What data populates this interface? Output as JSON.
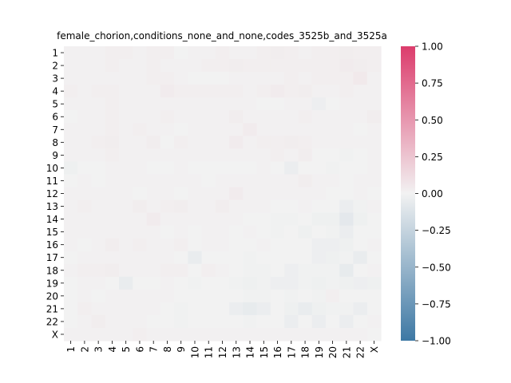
{
  "chart_data": {
    "type": "heatmap",
    "title": "female_chorion,conditions_none_and_none,codes_3525b_and_3525a",
    "xlabel": "",
    "ylabel": "",
    "row_labels": [
      "1",
      "2",
      "3",
      "4",
      "5",
      "6",
      "7",
      "8",
      "9",
      "10",
      "11",
      "12",
      "13",
      "14",
      "15",
      "16",
      "17",
      "18",
      "19",
      "20",
      "21",
      "22",
      "X"
    ],
    "col_labels": [
      "1",
      "2",
      "3",
      "4",
      "5",
      "6",
      "7",
      "8",
      "9",
      "10",
      "11",
      "12",
      "13",
      "14",
      "15",
      "16",
      "17",
      "18",
      "19",
      "20",
      "21",
      "22",
      "X"
    ],
    "colormap": "diverging blue-white-red",
    "colors": {
      "negative": "#3d78a4",
      "center": "#f2f2f2",
      "positive": "#dc3c6c"
    },
    "vmin": -1.0,
    "vmax": 1.0,
    "colorbar_ticks": [
      1.0,
      0.75,
      0.5,
      0.25,
      0.0,
      -0.25,
      -0.5,
      -0.75,
      -1.0
    ],
    "colorbar_tick_labels": [
      "1.00",
      "0.75",
      "0.50",
      "0.25",
      "0.00",
      "−0.25",
      "−0.50",
      "−0.75",
      "−1.00"
    ],
    "values": [
      [
        0.01,
        0.01,
        0.01,
        0.02,
        0.02,
        0.01,
        0.02,
        0.02,
        0.0,
        0.01,
        0.01,
        0.02,
        0.01,
        0.01,
        0.02,
        0.03,
        0.02,
        0.01,
        0.02,
        0.02,
        0.03,
        0.02,
        0.02
      ],
      [
        0.01,
        0.01,
        0.01,
        0.02,
        0.01,
        0.01,
        0.02,
        0.01,
        0.01,
        0.01,
        0.02,
        0.02,
        0.03,
        0.02,
        0.02,
        0.02,
        0.02,
        0.02,
        0.02,
        0.02,
        0.04,
        0.03,
        0.02
      ],
      [
        0.01,
        0.01,
        0.01,
        0.01,
        0.01,
        0.01,
        0.02,
        0.02,
        0.01,
        0.0,
        0.0,
        0.0,
        0.01,
        0.01,
        0.01,
        0.01,
        0.02,
        0.01,
        0.02,
        0.02,
        0.02,
        0.05,
        0.01
      ],
      [
        0.02,
        0.01,
        0.02,
        0.02,
        0.01,
        0.01,
        0.01,
        0.04,
        0.02,
        0.02,
        0.02,
        0.02,
        0.02,
        0.01,
        0.02,
        0.04,
        0.02,
        0.03,
        0.01,
        0.01,
        0.02,
        0.01,
        0.01
      ],
      [
        0.01,
        0.01,
        0.01,
        0.02,
        0.01,
        0.01,
        0.01,
        0.01,
        0.01,
        0.01,
        0.01,
        0.01,
        0.01,
        0.01,
        0.0,
        0.0,
        0.01,
        0.01,
        -0.03,
        0.0,
        0.01,
        0.01,
        0.01
      ],
      [
        0.0,
        0.01,
        0.01,
        0.02,
        0.01,
        0.01,
        0.01,
        0.02,
        0.01,
        0.01,
        0.01,
        0.01,
        0.03,
        0.01,
        0.01,
        0.01,
        0.01,
        0.02,
        0.01,
        0.01,
        0.01,
        0.01,
        0.03
      ],
      [
        0.01,
        0.01,
        0.01,
        0.02,
        0.01,
        0.02,
        0.01,
        0.01,
        0.0,
        0.01,
        0.01,
        0.01,
        0.01,
        0.04,
        0.01,
        0.01,
        0.01,
        0.01,
        0.01,
        0.01,
        0.01,
        0.0,
        0.01
      ],
      [
        0.01,
        0.01,
        0.02,
        0.03,
        0.01,
        0.01,
        0.03,
        0.0,
        0.02,
        0.01,
        0.01,
        0.01,
        0.04,
        0.01,
        0.02,
        0.02,
        0.03,
        0.02,
        0.01,
        0.01,
        0.01,
        0.01,
        0.01
      ],
      [
        0.01,
        0.01,
        0.01,
        0.02,
        0.01,
        0.01,
        0.01,
        0.01,
        0.01,
        0.01,
        0.01,
        0.01,
        0.01,
        0.01,
        0.01,
        0.02,
        0.01,
        0.03,
        0.0,
        0.0,
        -0.01,
        0.0,
        0.01
      ],
      [
        -0.02,
        0.0,
        0.0,
        0.01,
        0.01,
        0.01,
        0.0,
        0.0,
        0.01,
        0.0,
        0.0,
        0.0,
        0.0,
        0.0,
        0.01,
        0.0,
        -0.04,
        0.0,
        0.0,
        -0.01,
        0.0,
        0.0,
        0.01
      ],
      [
        0.0,
        0.01,
        0.0,
        0.01,
        0.01,
        0.01,
        0.01,
        0.01,
        0.01,
        0.01,
        0.0,
        0.01,
        0.01,
        0.01,
        0.01,
        0.01,
        0.01,
        0.03,
        0.01,
        0.01,
        0.0,
        0.01,
        0.01
      ],
      [
        0.01,
        0.01,
        0.01,
        0.01,
        0.01,
        0.0,
        0.01,
        0.01,
        0.0,
        0.01,
        0.01,
        0.01,
        0.04,
        0.01,
        0.01,
        0.01,
        0.01,
        0.01,
        0.01,
        0.0,
        0.0,
        0.01,
        0.0
      ],
      [
        0.01,
        0.02,
        0.01,
        0.01,
        0.01,
        0.03,
        0.01,
        0.02,
        0.03,
        0.01,
        0.01,
        0.03,
        0.01,
        0.01,
        0.01,
        0.0,
        0.0,
        0.01,
        0.0,
        0.0,
        -0.04,
        -0.01,
        0.01
      ],
      [
        0.01,
        0.01,
        0.01,
        0.01,
        0.01,
        0.01,
        0.04,
        0.01,
        0.01,
        0.01,
        0.01,
        0.01,
        0.01,
        0.0,
        0.0,
        -0.01,
        -0.01,
        0.0,
        -0.02,
        -0.02,
        -0.08,
        -0.02,
        0.0
      ],
      [
        0.01,
        0.01,
        0.01,
        0.01,
        0.01,
        0.01,
        0.01,
        0.0,
        0.01,
        0.0,
        0.01,
        0.01,
        0.0,
        0.01,
        0.0,
        -0.01,
        0.0,
        -0.02,
        0.0,
        -0.01,
        -0.04,
        0.0,
        0.0
      ],
      [
        0.01,
        0.0,
        0.01,
        0.03,
        0.01,
        0.02,
        0.01,
        0.01,
        0.02,
        0.0,
        0.01,
        0.01,
        0.0,
        0.0,
        0.01,
        0.0,
        0.0,
        0.0,
        -0.03,
        -0.03,
        -0.02,
        0.0,
        0.01
      ],
      [
        0.0,
        0.01,
        0.01,
        0.01,
        0.01,
        0.01,
        0.01,
        0.01,
        0.0,
        -0.05,
        0.0,
        0.0,
        0.0,
        -0.01,
        0.0,
        0.0,
        0.0,
        0.0,
        -0.03,
        -0.02,
        -0.01,
        -0.05,
        0.0
      ],
      [
        0.01,
        0.02,
        0.02,
        0.03,
        0.01,
        0.01,
        0.01,
        0.02,
        0.02,
        0.0,
        0.02,
        0.01,
        0.0,
        -0.01,
        -0.01,
        0.0,
        -0.03,
        -0.01,
        -0.01,
        -0.01,
        -0.06,
        0.0,
        0.01
      ],
      [
        0.0,
        0.01,
        0.01,
        0.0,
        -0.05,
        0.0,
        0.0,
        0.01,
        0.0,
        -0.01,
        0.0,
        0.0,
        -0.01,
        -0.02,
        -0.01,
        -0.03,
        -0.03,
        -0.01,
        -0.02,
        -0.01,
        -0.02,
        -0.03,
        -0.02
      ],
      [
        0.0,
        0.01,
        0.0,
        0.01,
        0.01,
        0.01,
        0.01,
        0.01,
        0.0,
        0.0,
        0.0,
        0.0,
        0.0,
        -0.01,
        -0.01,
        0.0,
        -0.01,
        0.0,
        -0.01,
        0.02,
        0.0,
        0.0,
        0.0
      ],
      [
        0.0,
        0.02,
        0.01,
        0.01,
        0.01,
        0.01,
        0.01,
        0.0,
        -0.01,
        0.0,
        0.0,
        0.0,
        -0.04,
        -0.06,
        -0.04,
        0.0,
        -0.02,
        -0.05,
        -0.02,
        -0.01,
        -0.01,
        -0.04,
        0.0
      ],
      [
        0.0,
        0.01,
        0.03,
        0.01,
        0.01,
        0.01,
        0.0,
        0.0,
        -0.01,
        0.0,
        0.0,
        0.0,
        0.0,
        -0.01,
        0.0,
        0.0,
        -0.04,
        0.0,
        -0.04,
        0.0,
        -0.04,
        0.0,
        0.01
      ],
      [
        0.01,
        0.01,
        0.01,
        0.01,
        0.01,
        0.02,
        0.01,
        0.01,
        0.01,
        0.01,
        0.01,
        0.01,
        0.01,
        0.01,
        0.01,
        0.01,
        0.01,
        0.01,
        0.01,
        0.01,
        0.01,
        0.01,
        0.0
      ]
    ]
  }
}
